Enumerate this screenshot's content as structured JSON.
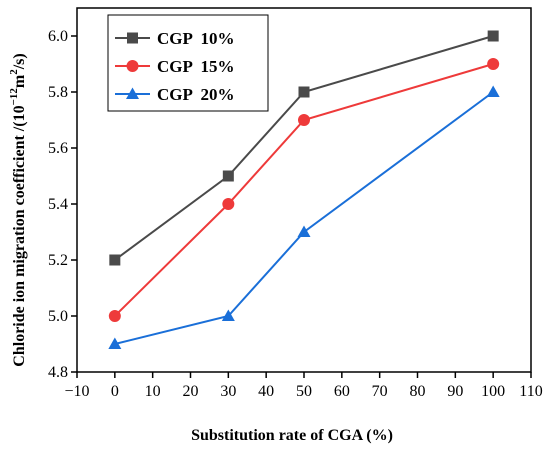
{
  "chart_data": {
    "type": "line",
    "xlabel": "Substitution rate of CGA (%)",
    "ylabel_prefix": "Chloride ion migration coefficient /(10",
    "ylabel_exp1": "−12",
    "ylabel_mid": "m",
    "ylabel_exp2": "2",
    "ylabel_suffix": "/s)",
    "xlim": [
      -10,
      110
    ],
    "ylim": [
      4.8,
      6.1
    ],
    "x_ticks": [
      -10,
      0,
      10,
      20,
      30,
      40,
      50,
      60,
      70,
      80,
      90,
      100,
      110
    ],
    "x_tick_labels": [
      "−10",
      "0",
      "10",
      "20",
      "30",
      "40",
      "50",
      "60",
      "70",
      "80",
      "90",
      "100",
      "110"
    ],
    "y_ticks": [
      4.8,
      5.0,
      5.2,
      5.4,
      5.6,
      5.8,
      6.0
    ],
    "y_tick_labels": [
      "4.8",
      "5.0",
      "5.2",
      "5.4",
      "5.6",
      "5.8",
      "6.0"
    ],
    "grid": false,
    "legend_position": "top-left",
    "series": [
      {
        "name": "CGP  10%",
        "color": "#4a4a4a",
        "marker": "square",
        "x": [
          0,
          30,
          50,
          100
        ],
        "y": [
          5.2,
          5.5,
          5.8,
          6.0
        ]
      },
      {
        "name": "CGP  15%",
        "color": "#ee3a3a",
        "marker": "circle",
        "x": [
          0,
          30,
          50,
          100
        ],
        "y": [
          5.0,
          5.4,
          5.7,
          5.9
        ]
      },
      {
        "name": "CGP  20%",
        "color": "#1a6fd8",
        "marker": "triangle",
        "x": [
          0,
          30,
          50,
          100
        ],
        "y": [
          4.9,
          5.0,
          5.3,
          5.8
        ]
      }
    ]
  }
}
